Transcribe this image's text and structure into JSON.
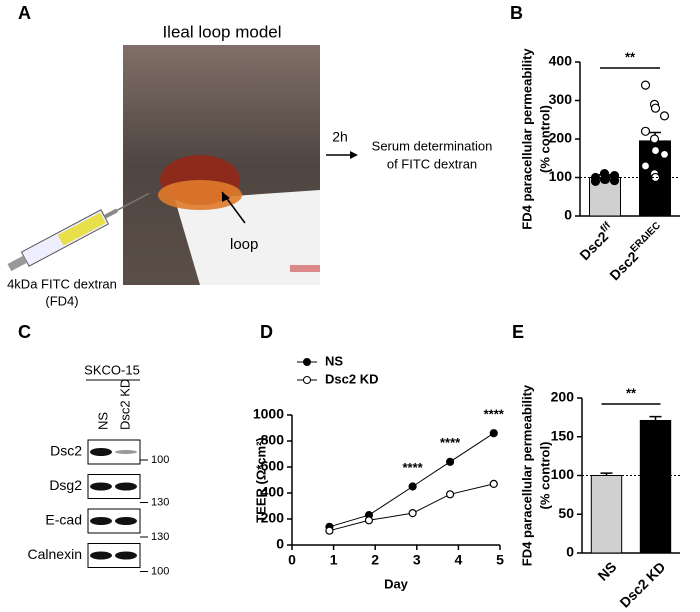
{
  "panels": [
    "A",
    "B",
    "C",
    "D",
    "E"
  ],
  "ileal_loop": {
    "title": "Ileal loop model",
    "time": "2h",
    "outcome": [
      "Serum determination",
      "of FITC dextran"
    ],
    "loop_label": "loop",
    "injection": [
      "4kDa FITC dextran",
      "(FD4)"
    ]
  },
  "western_blot": {
    "cell_line": "SKCO-15",
    "lanes": [
      "NS",
      "Dsc2 KD"
    ],
    "rows": [
      {
        "protein": "Dsc2",
        "mw": 100
      },
      {
        "protein": "Dsg2",
        "mw": 130
      },
      {
        "protein": "E-cad",
        "mw": 130
      },
      {
        "protein": "Calnexin",
        "mw": 100
      }
    ]
  },
  "chart_data": [
    {
      "type": "bar",
      "ylabel": [
        "FD4 paracellular permeability",
        "(% control)"
      ],
      "categories": [
        "Dsc2",
        "Dsc2"
      ],
      "category_superscripts": [
        "f/f",
        "ERΔIEC"
      ],
      "values": [
        100,
        195
      ],
      "errors": [
        7,
        22
      ],
      "colors": [
        "#d0d0d0",
        "#000000"
      ],
      "points": [
        [
          90,
          95,
          100,
          105,
          100,
          110,
          95,
          92
        ],
        [
          340,
          290,
          280,
          260,
          220,
          200,
          170,
          160,
          130,
          110,
          100
        ]
      ],
      "ylim": [
        0,
        400
      ],
      "yticks": [
        0,
        100,
        200,
        300,
        400
      ],
      "reference_line": 100,
      "significance": "**"
    },
    {
      "type": "line",
      "ylabel": [
        "TEER (Ω*cm²)"
      ],
      "xlabel": "Day",
      "x": [
        0.9,
        1.85,
        2.9,
        3.8,
        4.85
      ],
      "series": [
        {
          "name": "NS",
          "color": "#000000",
          "marker_fill": "#000000",
          "values": [
            140,
            230,
            450,
            640,
            860
          ]
        },
        {
          "name": "Dsc2 KD",
          "color": "#000000",
          "marker_fill": "#ffffff",
          "values": [
            110,
            190,
            245,
            390,
            470
          ]
        }
      ],
      "significance": [
        null,
        null,
        "****",
        "****",
        "****"
      ],
      "xlim": [
        0,
        5
      ],
      "xticks": [
        0,
        1,
        2,
        3,
        4,
        5
      ],
      "ylim": [
        0,
        1000
      ],
      "yticks": [
        0,
        200,
        400,
        600,
        800,
        1000
      ],
      "legend": "top-left"
    },
    {
      "type": "bar",
      "ylabel": [
        "FD4 paracellular permeability",
        "(% control)"
      ],
      "categories": [
        "NS",
        "Dsc2 KD"
      ],
      "values": [
        100,
        171
      ],
      "errors": [
        3,
        5
      ],
      "colors": [
        "#d0d0d0",
        "#000000"
      ],
      "ylim": [
        0,
        200
      ],
      "yticks": [
        0,
        50,
        100,
        150,
        200
      ],
      "reference_line": 100,
      "significance": "**"
    }
  ]
}
